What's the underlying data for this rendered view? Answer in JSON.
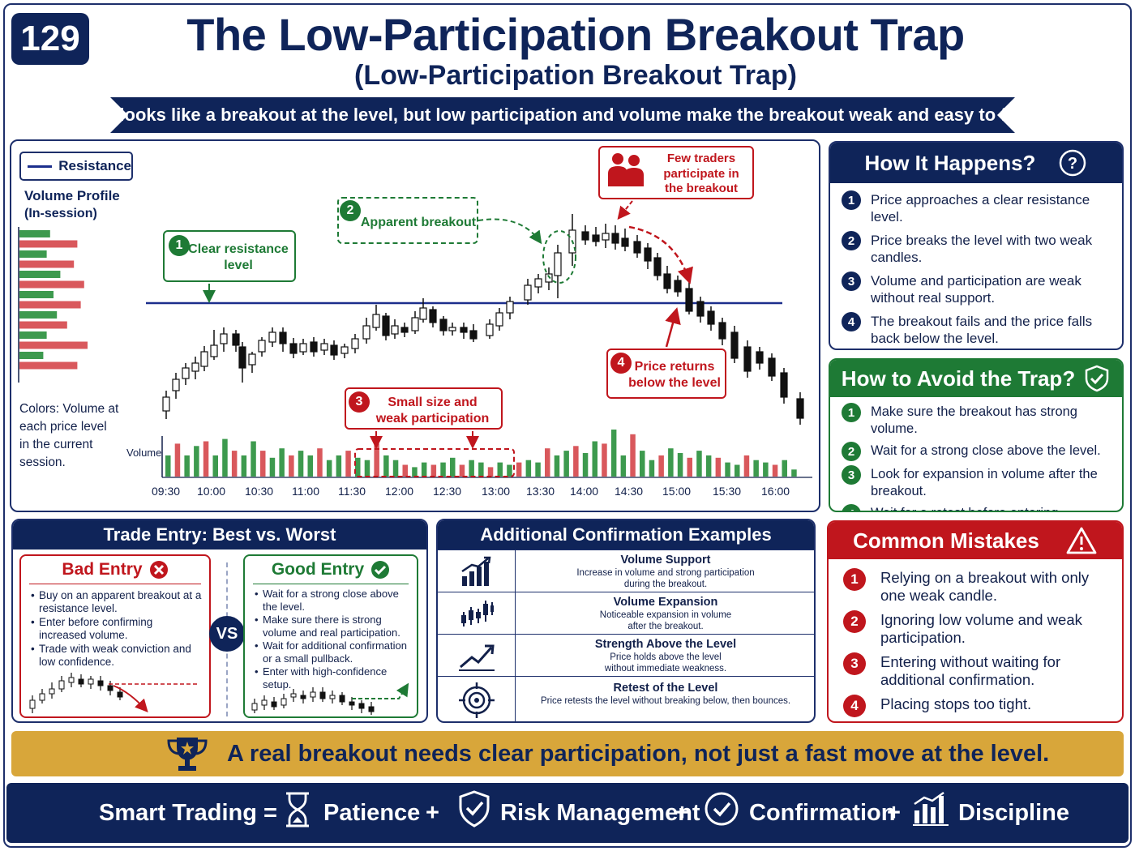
{
  "header": {
    "number": "129",
    "title": "The Low-Participation Breakout Trap",
    "subtitle": "(Low-Participation Breakout Trap)",
    "ribbon": "It looks like a breakout at the level, but low participation and volume make the breakout weak and easy to fail."
  },
  "chart": {
    "legend_label": "Resistance",
    "volume_profile_title": "Volume Profile",
    "volume_profile_sub": "(In-session)",
    "colors_note": [
      "Colors: Volume at",
      "each price level",
      "in the current",
      "session."
    ],
    "volume_label": "Volume",
    "time_ticks": [
      "09:30",
      "10:00",
      "10:30",
      "11:00",
      "11:30",
      "12:00",
      "12:30",
      "13:00",
      "13:30",
      "14:00",
      "14:30",
      "15:00",
      "15:30",
      "16:00"
    ],
    "callouts": {
      "c1": {
        "num": "1",
        "lines": [
          "Clear resistance",
          "level"
        ]
      },
      "c2": {
        "num": "2",
        "lines": [
          "Apparent breakout"
        ]
      },
      "c3": {
        "num": "3",
        "lines": [
          "Small size and",
          "weak participation"
        ]
      },
      "c4": {
        "num": "4",
        "lines": [
          "Price returns",
          "below the level"
        ]
      },
      "c5": {
        "lines": [
          "Few traders",
          "participate in",
          "the breakout"
        ]
      }
    },
    "colors": {
      "up": "#3d9a4e",
      "down": "#d9585c",
      "resistance": "#1b2e8c"
    }
  },
  "how_it_happens": {
    "title": "How It Happens?",
    "items": [
      {
        "num": "1",
        "text": "Price approaches a clear resistance level."
      },
      {
        "num": "2",
        "text": "Price breaks the level with two weak candles."
      },
      {
        "num": "3",
        "text": "Volume and participation are weak without real support."
      },
      {
        "num": "4",
        "text": "The breakout fails and the price falls back below the level."
      }
    ]
  },
  "avoid": {
    "title": "How to Avoid the Trap?",
    "items": [
      {
        "num": "1",
        "text": "Make sure the breakout has strong volume."
      },
      {
        "num": "2",
        "text": "Wait for a strong close above the level."
      },
      {
        "num": "3",
        "text": "Look for expansion in volume after the breakout."
      },
      {
        "num": "4",
        "text": "Wait for a retest before entering."
      }
    ]
  },
  "trade_entry": {
    "title": "Trade Entry: Best vs. Worst",
    "vs": "VS",
    "bad": {
      "title": "Bad Entry",
      "items": [
        "Buy on an apparent breakout at a resistance level.",
        "Enter before confirming increased volume.",
        "Trade with weak conviction and low confidence."
      ]
    },
    "good": {
      "title": "Good Entry",
      "items": [
        "Wait for a strong close above the level.",
        "Make sure there is strong volume and real participation.",
        "Wait for additional confirmation or a small pullback.",
        "Enter with high-confidence setup."
      ]
    }
  },
  "confirmation": {
    "title": "Additional Confirmation Examples",
    "rows": [
      {
        "icon": "bar-growth-icon",
        "title": "Volume Support",
        "desc": [
          "Increase in volume and strong participation",
          "during the breakout."
        ]
      },
      {
        "icon": "candles-icon",
        "title": "Volume Expansion",
        "desc": [
          "Noticeable expansion in volume",
          "after the breakout."
        ]
      },
      {
        "icon": "trend-arrow-icon",
        "title": "Strength Above the Level",
        "desc": [
          "Price holds above the level",
          "without immediate weakness."
        ]
      },
      {
        "icon": "target-icon",
        "title": "Retest of the Level",
        "desc": [
          "Price retests the level without breaking below, then bounces."
        ]
      }
    ]
  },
  "mistakes": {
    "title": "Common Mistakes",
    "items": [
      {
        "num": "1",
        "text": "Relying on a breakout with only one weak candle."
      },
      {
        "num": "2",
        "text": "Ignoring low volume and weak participation."
      },
      {
        "num": "3",
        "text": "Entering without waiting for additional confirmation."
      },
      {
        "num": "4",
        "text": "Placing stops too tight."
      }
    ]
  },
  "banner": {
    "text": "A real breakout needs clear participation, not just a fast move at the level."
  },
  "footer": {
    "lead": "Smart Trading =",
    "items": [
      "Patience",
      "Risk Management",
      "Confirmation",
      "Discipline"
    ],
    "plus": "+"
  }
}
